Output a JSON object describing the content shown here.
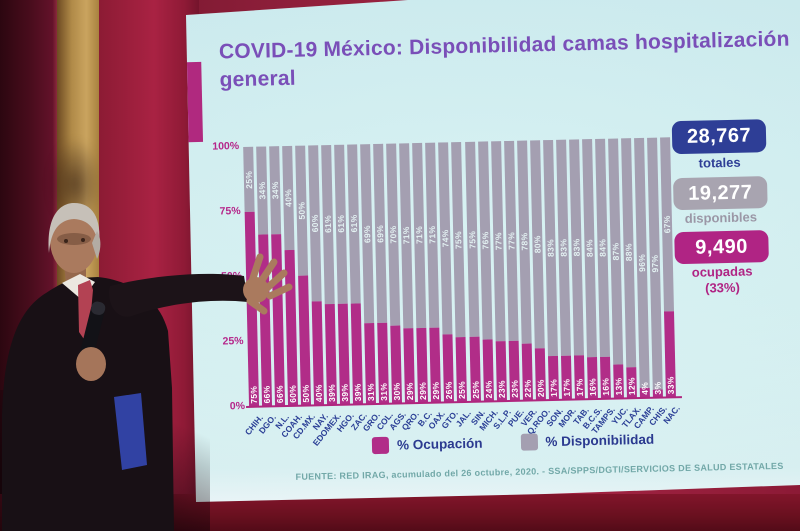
{
  "slide": {
    "title": "COVID-19 México: Disponibilidad camas hospitalización general",
    "footer": "FUENTE: RED IRAG, acumulado del 26 octubre, 2020.  -  SSA/SPPS/DGTI/SERVICIOS DE SALUD ESTATALES",
    "y_axis": [
      "100%",
      "75%",
      "50%",
      "25%",
      "0%"
    ],
    "legend": [
      {
        "label": "% Ocupación",
        "color": "#b12d88"
      },
      {
        "label": "% Disponibilidad",
        "color": "#a49fb1"
      }
    ],
    "stats": [
      {
        "value": "28,767",
        "label": "totales",
        "bg": "#2e3e96",
        "label_color": "#2e3e96"
      },
      {
        "value": "19,277",
        "label": "disponibles",
        "bg": "#a8a4b0",
        "label_color": "#9b97a6"
      },
      {
        "value": "9,490",
        "label": "ocupadas",
        "sublabel": "(33%)",
        "bg": "#b02484",
        "label_color": "#b02484"
      }
    ]
  },
  "chart_data": {
    "type": "bar",
    "stacked": true,
    "title": "COVID-19 México: Disponibilidad camas hospitalización general",
    "categories": [
      "CHIH.",
      "DGO.",
      "N.L.",
      "COAH.",
      "CD.MX.",
      "NAY.",
      "EDOMEX.",
      "HGO.",
      "ZAC.",
      "GRO.",
      "COL.",
      "AGS.",
      "QRO.",
      "B.C.",
      "OAX.",
      "GTO.",
      "JAL.",
      "SIN.",
      "MICH.",
      "S.L.P.",
      "PUE.",
      "VER.",
      "Q.ROO.",
      "SON.",
      "MOR.",
      "TAB.",
      "B.C.S.",
      "TAMPS.",
      "YUC.",
      "TLAX.",
      "CAMP.",
      "CHIS.",
      "NAC."
    ],
    "series": [
      {
        "name": "% Ocupación",
        "color": "#b12d88",
        "values": [
          75,
          66,
          66,
          60,
          50,
          40,
          39,
          39,
          39,
          31,
          31,
          30,
          29,
          29,
          29,
          26,
          25,
          25,
          24,
          23,
          23,
          22,
          20,
          17,
          17,
          17,
          16,
          16,
          13,
          12,
          4,
          3,
          33
        ]
      },
      {
        "name": "% Disponibilidad",
        "color": "#a49fb1",
        "values": [
          25,
          34,
          34,
          40,
          50,
          60,
          61,
          61,
          61,
          69,
          69,
          70,
          71,
          71,
          71,
          74,
          75,
          75,
          76,
          77,
          77,
          78,
          80,
          83,
          83,
          83,
          84,
          84,
          87,
          88,
          96,
          97,
          67
        ]
      }
    ],
    "ylim": [
      0,
      100
    ],
    "y_ticks": [
      "0%",
      "25%",
      "50%",
      "75%",
      "100%"
    ],
    "legend_position": "bottom",
    "value_labels": "percent on each segment"
  }
}
